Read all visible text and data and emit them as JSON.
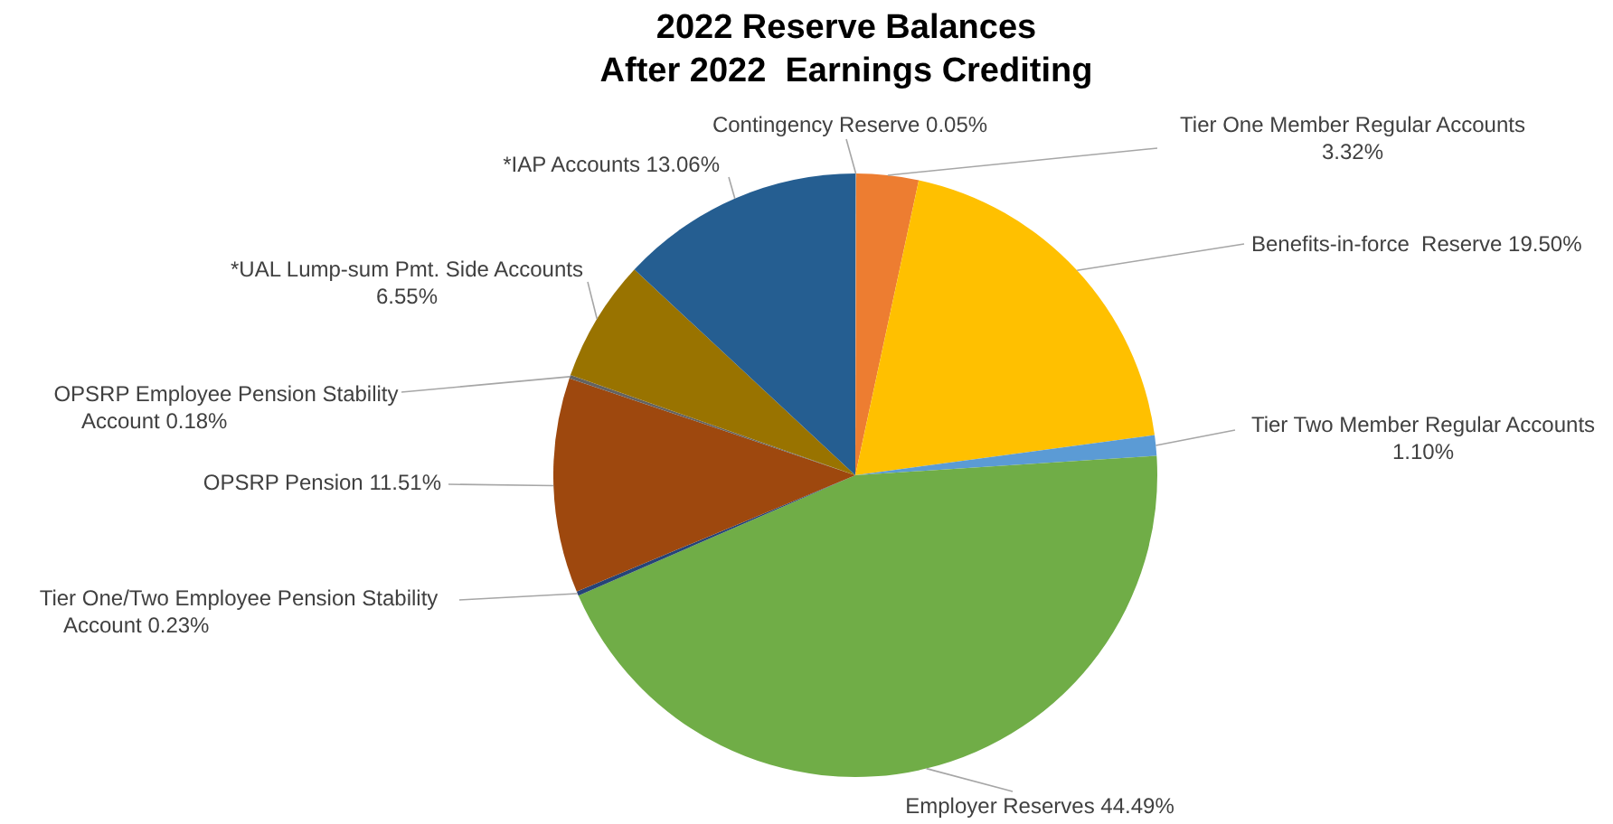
{
  "chart_data": {
    "type": "pie",
    "title": "2022 Reserve Balances\nAfter 2022  Earnings Crediting",
    "categories": [
      "Contingency Reserve",
      "Tier One Member Regular Accounts",
      "Benefits-in-force  Reserve",
      "Tier Two Member Regular Accounts",
      "Employer Reserves",
      "Tier One/Two Employee Pension Stability Account",
      "OPSRP Pension",
      "OPSRP Employee Pension Stability Account",
      "*UAL Lump-sum Pmt. Side Accounts",
      "*IAP Accounts"
    ],
    "values": [
      0.05,
      3.32,
      19.5,
      1.1,
      44.49,
      0.23,
      11.51,
      0.18,
      6.55,
      13.06
    ],
    "value_labels": [
      "0.05%",
      "3.32%",
      "19.50%",
      "1.10%",
      "44.49%",
      "0.23%",
      "11.51%",
      "0.18%",
      "6.55%",
      "13.06%"
    ],
    "colors": [
      "#a5a5a5",
      "#ed7d31",
      "#ffc000",
      "#5b9bd5",
      "#70ad47",
      "#264478",
      "#9e480e",
      "#636363",
      "#997300",
      "#255e91"
    ]
  }
}
